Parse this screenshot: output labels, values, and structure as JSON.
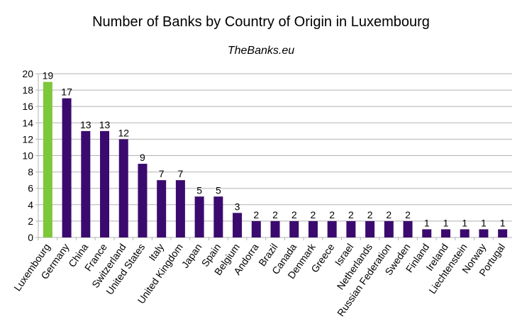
{
  "chart_data": {
    "type": "bar",
    "title": "Number of Banks by Country of Origin in Luxembourg",
    "subtitle": "TheBanks.eu",
    "xlabel": "",
    "ylabel": "",
    "ylim": [
      0,
      20
    ],
    "yticks": [
      0,
      2,
      4,
      6,
      8,
      10,
      12,
      14,
      16,
      18,
      20
    ],
    "grid": true,
    "legend": "none",
    "categories": [
      "Luxembourg",
      "Germany",
      "China",
      "France",
      "Switzerland",
      "United States",
      "Italy",
      "United Kingdom",
      "Japan",
      "Spain",
      "Belgium",
      "Andorra",
      "Brazil",
      "Canada",
      "Denmark",
      "Greece",
      "Israel",
      "Netherlands",
      "Russian Federation",
      "Sweden",
      "Finland",
      "Ireland",
      "Liechtenstein",
      "Norway",
      "Portugal"
    ],
    "values": [
      19,
      17,
      13,
      13,
      12,
      9,
      7,
      7,
      5,
      5,
      3,
      2,
      2,
      2,
      2,
      2,
      2,
      2,
      2,
      2,
      1,
      1,
      1,
      1,
      1
    ],
    "colors": {
      "highlight": "#7dc73a",
      "default": "#3b0a6e",
      "grid": "#b3b3b3",
      "axis": "#b3b3b3"
    },
    "highlight_category": "Luxembourg"
  }
}
